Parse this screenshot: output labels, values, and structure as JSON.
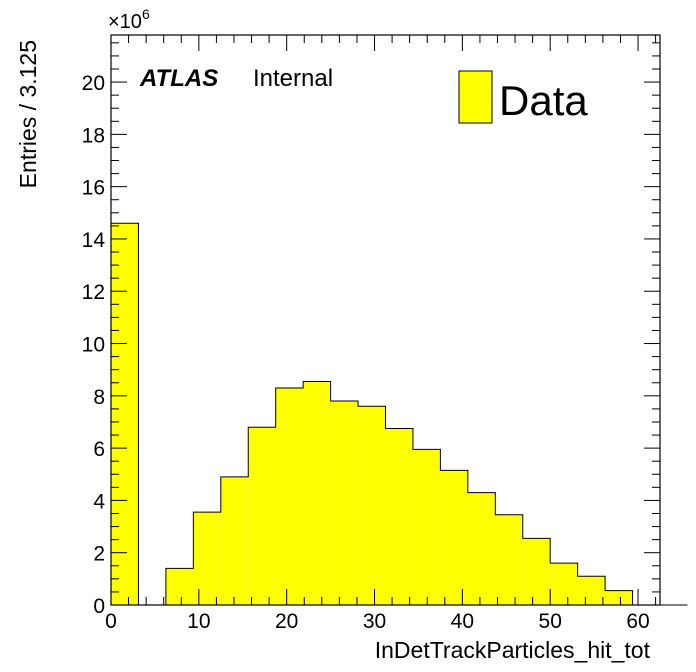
{
  "chart_data": {
    "type": "bar",
    "histogram": true,
    "xlabel": "InDetTrackParticles_hit_tot",
    "ylabel": "Entries / 3.125",
    "y_multiplier": "×10",
    "y_multiplier_exp": "6",
    "xlim": [
      0,
      62.5
    ],
    "ylim": [
      0,
      21.8
    ],
    "bin_width": 3.125,
    "x_ticks": [
      0,
      10,
      20,
      30,
      40,
      50,
      60
    ],
    "y_ticks": [
      0,
      2,
      4,
      6,
      8,
      10,
      12,
      14,
      16,
      18,
      20
    ],
    "bin_values": [
      14.6,
      0,
      1.4,
      3.55,
      4.9,
      6.8,
      8.3,
      8.55,
      7.8,
      7.6,
      6.75,
      5.95,
      5.15,
      4.3,
      3.45,
      2.55,
      1.6,
      1.1,
      0.55,
      0,
      0
    ],
    "fill_color": "#ffff00",
    "line_color": "#000000",
    "legend": {
      "position": "top-right",
      "entries": [
        {
          "label": "Data",
          "color": "#ffff00"
        }
      ]
    },
    "annotation": {
      "bold": "ATLAS",
      "normal": "Internal"
    },
    "grid": false
  }
}
